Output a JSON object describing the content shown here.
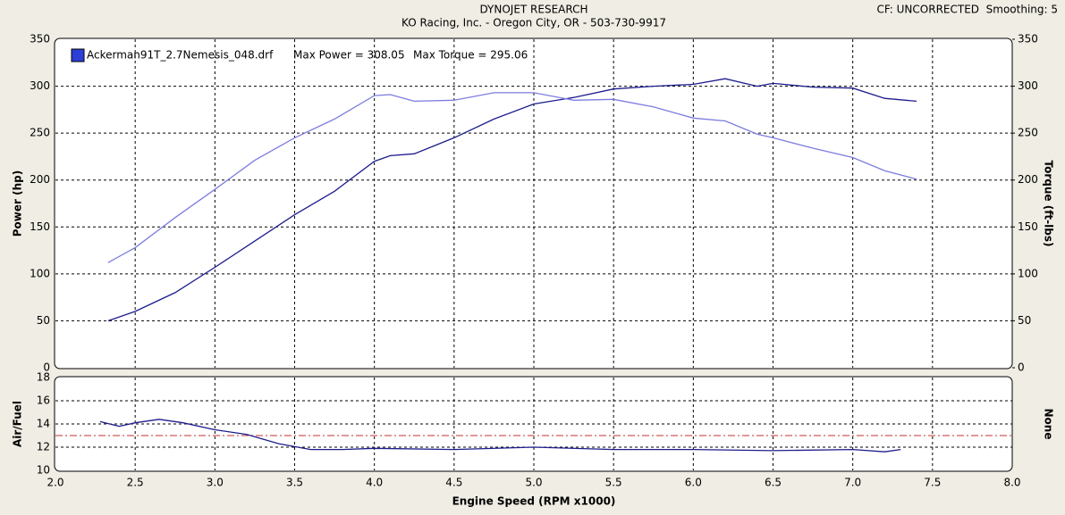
{
  "header": {
    "title": "DYNOJET RESEARCH",
    "subtitle": "KO Racing, Inc. - Oregon City, OR - 503-730-9917",
    "settings": "CF: UNCORRECTED  Smoothing: 5"
  },
  "chart_data": [
    {
      "type": "line",
      "ylabel": "Power (hp)",
      "y2label": "Torque (ft-lbs)",
      "legend": {
        "file": "Ackerman91T_2.7Nemesis_048.drf",
        "max_power": "Max Power = 308.05",
        "max_torque": "Max Torque = 295.06",
        "color": "#2b3fd6"
      },
      "x": [
        2.33,
        2.5,
        2.75,
        3.0,
        3.25,
        3.5,
        3.75,
        4.0,
        4.1,
        4.25,
        4.5,
        4.75,
        5.0,
        5.25,
        5.5,
        5.75,
        6.0,
        6.2,
        6.4,
        6.5,
        6.75,
        7.0,
        7.2,
        7.4
      ],
      "series": [
        {
          "color": "#1c1c8c",
          "axis": "y",
          "values": [
            50,
            60,
            80,
            107,
            135,
            163,
            188,
            220,
            226,
            228,
            245,
            265,
            281,
            288,
            297,
            300,
            302,
            308,
            300,
            303,
            299,
            298,
            287,
            284
          ]
        },
        {
          "color": "#7c7ce0",
          "axis": "y2",
          "values": [
            112,
            128,
            160,
            190,
            221,
            245,
            265,
            290,
            291,
            284,
            285,
            293,
            293,
            285,
            286,
            278,
            266,
            263,
            249,
            245,
            234,
            224,
            210,
            201
          ]
        }
      ],
      "xlim": [
        2,
        8
      ],
      "xticks": [
        {
          "value": 2,
          "label": "2.0"
        },
        2.5,
        {
          "value": 3,
          "label": "3.0"
        },
        3.5,
        {
          "value": 4,
          "label": "4.0"
        },
        4.5,
        {
          "value": 5,
          "label": "5.0"
        },
        5.5,
        {
          "value": 6,
          "label": "6.0"
        },
        6.5,
        {
          "value": 7,
          "label": "7.0"
        },
        7.5,
        {
          "value": 8,
          "label": "8.0"
        }
      ],
      "ylim": [
        0,
        350
      ],
      "yticks": [
        0,
        50,
        100,
        150,
        200,
        250,
        300,
        350
      ],
      "y2lim": [
        0,
        350
      ],
      "y2ticks": [
        0,
        50,
        100,
        150,
        200,
        250,
        300,
        350
      ],
      "grid": true
    },
    {
      "type": "line",
      "ylabel": "Air/Fuel",
      "y2label": "None",
      "xlabel": "Engine Speed (RPM x1000)",
      "x": [
        2.28,
        2.4,
        2.5,
        2.65,
        2.8,
        3.0,
        3.2,
        3.4,
        3.6,
        3.8,
        4.0,
        4.5,
        5.0,
        5.5,
        6.0,
        6.5,
        7.0,
        7.2,
        7.3
      ],
      "series": [
        {
          "color": "#1c1c8c",
          "values": [
            14.2,
            13.8,
            14.1,
            14.4,
            14.1,
            13.5,
            13.1,
            12.3,
            11.8,
            11.8,
            11.9,
            11.8,
            12.0,
            11.8,
            11.8,
            11.7,
            11.8,
            11.6,
            11.8
          ]
        }
      ],
      "reference": {
        "value": 13,
        "color": "#c03030"
      },
      "xlim": [
        2,
        8
      ],
      "xticks": [
        {
          "value": 2,
          "label": "2.0"
        },
        2.5,
        {
          "value": 3,
          "label": "3.0"
        },
        3.5,
        {
          "value": 4,
          "label": "4.0"
        },
        4.5,
        {
          "value": 5,
          "label": "5.0"
        },
        5.5,
        {
          "value": 6,
          "label": "6.0"
        },
        6.5,
        {
          "value": 7,
          "label": "7.0"
        },
        7.5,
        {
          "value": 8,
          "label": "8.0"
        }
      ],
      "ylim": [
        10,
        18
      ],
      "yticks": [
        10,
        12,
        14,
        16,
        18
      ],
      "grid": true
    }
  ]
}
